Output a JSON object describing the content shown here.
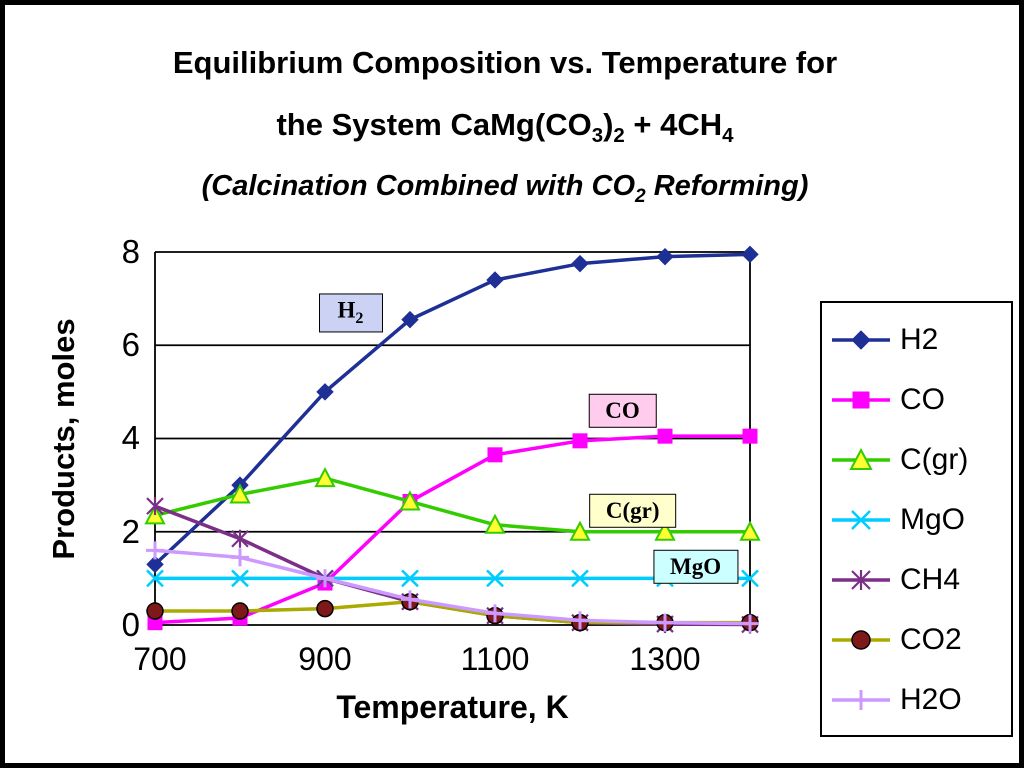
{
  "title": {
    "line1": "Equilibrium Composition vs. Temperature for",
    "line2": {
      "p1": "the System CaMg(CO",
      "s1": "3",
      "p2": ")",
      "s2": "2",
      "p3": " + 4CH",
      "s3": "4"
    },
    "line3": {
      "p1": "(Calcination Combined with CO",
      "s1": "2",
      "p2": " Reforming)"
    }
  },
  "chart_data": {
    "type": "line",
    "title": "Equilibrium Composition vs. Temperature for the System CaMg(CO3)2 + 4CH4 (Calcination Combined with CO2 Reforming)",
    "xlabel": "Temperature, K",
    "ylabel": "Products, moles",
    "xlim": [
      700,
      1400
    ],
    "ylim": [
      0,
      8
    ],
    "x_ticks": [
      700,
      900,
      1100,
      1300
    ],
    "x_tick_labels": [
      "700",
      "900",
      "1100",
      "1300"
    ],
    "y_ticks": [
      0,
      2,
      4,
      6,
      8
    ],
    "y_tick_labels": [
      "0",
      "2",
      "4",
      "6",
      "8"
    ],
    "grid": "horizontal",
    "legend_position": "right",
    "x": [
      700,
      800,
      900,
      1000,
      1100,
      1200,
      1300,
      1400
    ],
    "series": [
      {
        "name": "H2",
        "color": "#1e2f96",
        "marker": "diamond",
        "marker_fill": "#1e2f96",
        "values": [
          1.3,
          3.0,
          5.0,
          6.55,
          7.4,
          7.75,
          7.9,
          7.95
        ]
      },
      {
        "name": "CO",
        "color": "#ff00ff",
        "marker": "square",
        "marker_fill": "#ff00ff",
        "values": [
          0.05,
          0.15,
          0.9,
          2.65,
          3.65,
          3.95,
          4.05,
          4.05
        ]
      },
      {
        "name": "C(gr)",
        "color": "#33cc00",
        "marker": "triangle",
        "marker_fill": "#ffff33",
        "values": [
          2.35,
          2.8,
          3.15,
          2.65,
          2.15,
          2.0,
          2.0,
          2.0
        ]
      },
      {
        "name": "MgO",
        "color": "#00ccff",
        "marker": "x",
        "marker_fill": "none",
        "values": [
          1.0,
          1.0,
          1.0,
          1.0,
          1.0,
          1.0,
          1.0,
          1.0
        ]
      },
      {
        "name": "CH4",
        "color": "#7b2f87",
        "marker": "star",
        "marker_fill": "none",
        "values": [
          2.55,
          1.85,
          1.0,
          0.5,
          0.2,
          0.05,
          0.02,
          0.01
        ]
      },
      {
        "name": "CO2",
        "color": "#aaaa00",
        "marker": "circle",
        "marker_fill": "#7f1818",
        "values": [
          0.3,
          0.3,
          0.35,
          0.5,
          0.2,
          0.05,
          0.05,
          0.05
        ]
      },
      {
        "name": "H2O",
        "color": "#cc99ff",
        "marker": "plus",
        "marker_fill": "none",
        "values": [
          1.6,
          1.45,
          1.0,
          0.55,
          0.25,
          0.1,
          0.05,
          0.03
        ]
      }
    ],
    "annotations": [
      {
        "text": "H",
        "sub": "2",
        "x": 930,
        "y": 6.7,
        "bg": "#ccd2f4"
      },
      {
        "text": "CO",
        "sub": "",
        "x": 1250,
        "y": 4.6,
        "bg": "#ffccee"
      },
      {
        "text": "C(gr)",
        "sub": "",
        "x": 1262,
        "y": 2.45,
        "bg": "#ffffcc"
      },
      {
        "text": "MgO",
        "sub": "",
        "x": 1336,
        "y": 1.25,
        "bg": "#ccffff"
      }
    ]
  }
}
